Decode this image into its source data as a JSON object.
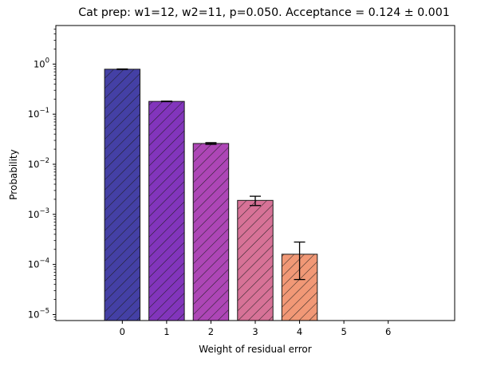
{
  "chart_data": {
    "type": "bar",
    "title": "Cat prep: w1=12, w2=11, p=0.050. Acceptance = 0.124 ± 0.001",
    "xlabel": "Weight of residual error",
    "ylabel": "Probability",
    "yscale": "log",
    "xlim": [
      -1.5,
      7.5
    ],
    "ylim_log10": [
      -5.12,
      0.77
    ],
    "grid": false,
    "legend": "none",
    "x_ticks": [
      "0",
      "1",
      "2",
      "3",
      "4",
      "5",
      "6"
    ],
    "y_ticks": [
      {
        "exp": "0",
        "value": 1
      },
      {
        "exp": "−1",
        "value": 0.1
      },
      {
        "exp": "−2",
        "value": 0.01
      },
      {
        "exp": "−3",
        "value": 0.001
      },
      {
        "exp": "−4",
        "value": 0.0001
      },
      {
        "exp": "−5",
        "value": 1e-05
      }
    ],
    "y_tick_base": "10",
    "categories": [
      0,
      1,
      2,
      3,
      4,
      5,
      6
    ],
    "values": [
      0.79,
      0.18,
      0.026,
      0.0019,
      0.00016,
      null,
      null
    ],
    "error_low": [
      0.78,
      0.178,
      0.025,
      0.0015,
      5e-05,
      null,
      null
    ],
    "error_high": [
      0.8,
      0.182,
      0.027,
      0.0023,
      0.00028,
      null,
      null
    ],
    "colors": [
      "#3a36a0",
      "#7b2ab8",
      "#a93cb2",
      "#d56a91",
      "#f0926f",
      "#f7b15a",
      "#f9d44b"
    ],
    "hatch": "diagonal"
  }
}
